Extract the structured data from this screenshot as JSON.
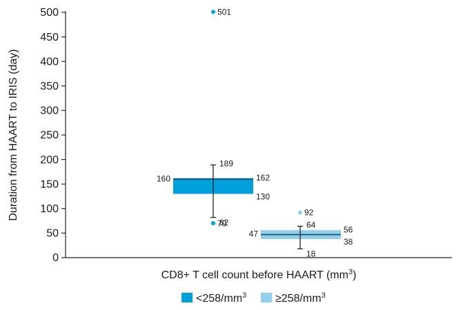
{
  "chart_data": {
    "type": "box",
    "title": "",
    "xlabel": "CD8+ T cell count before HAART (mm",
    "xlabel_sup": "3",
    "xlabel_end": ")",
    "ylabel": "Duration from HAART to IRIS (day)",
    "ylim": [
      0,
      500
    ],
    "yticks": [
      0,
      50,
      100,
      150,
      200,
      250,
      300,
      350,
      400,
      450,
      500
    ],
    "grid": false,
    "legend_position": "bottom",
    "series": [
      {
        "name": "<258/mm",
        "name_sup": "3",
        "color": "#00a0dc",
        "q1": 130,
        "median": 160,
        "q3": 162,
        "whisker_low": 82,
        "whisker_high": 189,
        "outliers": [
          501,
          70
        ],
        "labels": {
          "q1": "130",
          "median": "160",
          "q3": "162",
          "low": "82",
          "high": "189"
        },
        "outlier_labels": [
          "501",
          "70"
        ]
      },
      {
        "name": "≥258/mm",
        "name_sup": "3",
        "color": "#8fd0ef",
        "q1": 38,
        "median": 47,
        "q3": 56,
        "whisker_low": 18,
        "whisker_high": 64,
        "outliers": [
          92
        ],
        "labels": {
          "q1": "38",
          "median": "47",
          "q3": "56",
          "low": "18",
          "high": "64"
        },
        "outlier_labels": [
          "92"
        ]
      }
    ]
  }
}
